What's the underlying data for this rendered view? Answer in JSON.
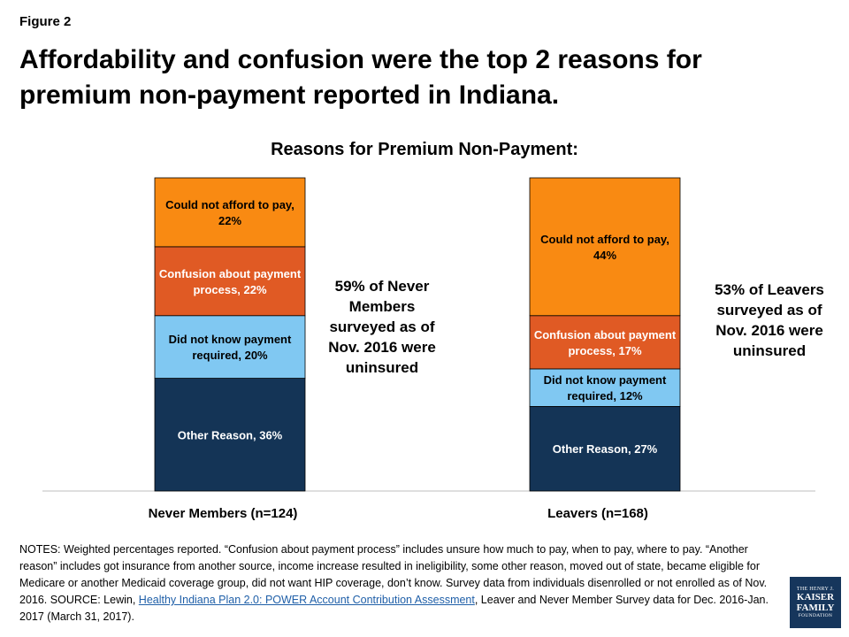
{
  "figure_label": "Figure 2",
  "title": "Affordability and confusion were the top 2 reasons for premium non-payment reported in Indiana.",
  "chart_title": "Reasons for Premium Non-Payment:",
  "colors": {
    "Could not afford to pay": "#f98a12",
    "Confusion about payment process": "#e05a24",
    "Did not know payment required": "#80c8f2",
    "Other Reason": "#143456"
  },
  "chart_data": {
    "type": "bar",
    "stacked": true,
    "title": "Reasons for Premium Non-Payment:",
    "categories": [
      "Never Members (n=124)",
      "Leavers (n=168)"
    ],
    "series": [
      {
        "name": "Other Reason",
        "values": [
          36,
          27
        ]
      },
      {
        "name": "Did not know payment required",
        "values": [
          20,
          12
        ]
      },
      {
        "name": "Confusion about payment process",
        "values": [
          22,
          17
        ]
      },
      {
        "name": "Could not afford to pay",
        "values": [
          22,
          44
        ]
      }
    ],
    "labels": [
      [
        [
          "Other Reason, 36%"
        ],
        [
          "Did not know payment",
          "required, 20%"
        ],
        [
          "Confusion about payment",
          "process, 22%"
        ],
        [
          "Could not afford to pay,",
          "22%"
        ]
      ],
      [
        [
          "Other Reason, 27%"
        ],
        [
          "Did not know payment",
          "required, 12%"
        ],
        [
          "Confusion about payment",
          "process, 17%"
        ],
        [
          "Could not afford to pay,",
          "44%"
        ]
      ]
    ],
    "ylim": [
      0,
      100
    ]
  },
  "side_notes": [
    "59% of Never Members surveyed as of Nov. 2016 were uninsured",
    "53% of Leavers surveyed as of Nov. 2016 were uninsured"
  ],
  "notes": {
    "before_link": "NOTES:  Weighted percentages reported.  “Confusion about payment process” includes unsure how much to pay, when to pay, where to pay.  “Another reason” includes got insurance from another source, income increase resulted in ineligibility, some other reason, moved out of state, became eligible for Medicare or another Medicaid coverage group, did not want HIP coverage, don’t know. Survey data from individuals disenrolled or not enrolled as of Nov. 2016. SOURCE:  Lewin, ",
    "link_text": "Healthy Indiana Plan 2.0: POWER Account Contribution Assessment",
    "after_link": ", Leaver and Never Member Survey data for Dec. 2016-Jan. 2017 (March 31, 2017)."
  },
  "logo": {
    "line1": "THE HENRY J.",
    "line2": "KAISER",
    "line3": "FAMILY",
    "line4": "FOUNDATION"
  }
}
